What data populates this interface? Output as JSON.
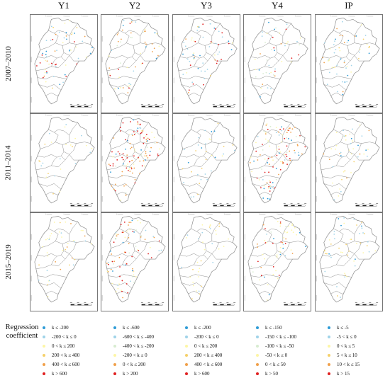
{
  "columns": [
    "Y1",
    "Y2",
    "Y3",
    "Y4",
    "IP"
  ],
  "rows": [
    "2007–2010",
    "2011–2014",
    "2015–2019"
  ],
  "legend_title": [
    "Regression",
    "coefficient"
  ],
  "legend": [
    {
      "variable": "Y1",
      "items": [
        {
          "label": "k ≤ -200",
          "color": "#2e9bd6"
        },
        {
          "label": "-200 < k ≤ 0",
          "color": "#9fd3e8"
        },
        {
          "label": "0 < k ≤ 200",
          "color": "#fdf6a6"
        },
        {
          "label": "200 < k ≤ 400",
          "color": "#f5d06a"
        },
        {
          "label": "400 < k ≤ 600",
          "color": "#f0a04a"
        },
        {
          "label": "k > 600",
          "color": "#e02020"
        }
      ]
    },
    {
      "variable": "Y2",
      "items": [
        {
          "label": "k ≤ -600",
          "color": "#2e9bd6"
        },
        {
          "label": "-600 < k ≤ -400",
          "color": "#9fd3e8"
        },
        {
          "label": "-400 < k ≤ -200",
          "color": "#d8ecd0"
        },
        {
          "label": "-200 < k ≤ 0",
          "color": "#fdf6a6"
        },
        {
          "label": "0 < k ≤ 200",
          "color": "#f0a04a"
        },
        {
          "label": "k > 200",
          "color": "#e02020"
        }
      ]
    },
    {
      "variable": "Y3",
      "items": [
        {
          "label": "k ≤ -200",
          "color": "#2e9bd6"
        },
        {
          "label": "-200 < k ≤ 0",
          "color": "#9fd3e8"
        },
        {
          "label": "0 < k ≤ 200",
          "color": "#fdf6a6"
        },
        {
          "label": "200 < k ≤ 400",
          "color": "#f5d06a"
        },
        {
          "label": "400 < k ≤ 600",
          "color": "#f0a04a"
        },
        {
          "label": "k > 600",
          "color": "#e02020"
        }
      ]
    },
    {
      "variable": "Y4",
      "items": [
        {
          "label": "k ≤ -150",
          "color": "#2e9bd6"
        },
        {
          "label": "-150 < k ≤ -100",
          "color": "#9fd3e8"
        },
        {
          "label": "-100 < k ≤ -50",
          "color": "#d8ecd0"
        },
        {
          "label": "-50 < k ≤ 0",
          "color": "#fdf6a6"
        },
        {
          "label": "0 < k ≤ 50",
          "color": "#f0a04a"
        },
        {
          "label": "k > 50",
          "color": "#e02020"
        }
      ]
    },
    {
      "variable": "IP",
      "items": [
        {
          "label": "k ≤ -5",
          "color": "#2e9bd6"
        },
        {
          "label": "-5 < k ≤ 0",
          "color": "#9fd3e8"
        },
        {
          "label": "0 < k ≤ 5",
          "color": "#fdf6a6"
        },
        {
          "label": "5 < k ≤ 10",
          "color": "#f5d06a"
        },
        {
          "label": "10 < k ≤ 15",
          "color": "#f0a04a"
        },
        {
          "label": "k > 15",
          "color": "#e02020"
        }
      ]
    }
  ],
  "map_colors": {
    "boundary": "#8a8a8a",
    "graticule": "#9a9a9a",
    "scale_bar": "#222222"
  }
}
